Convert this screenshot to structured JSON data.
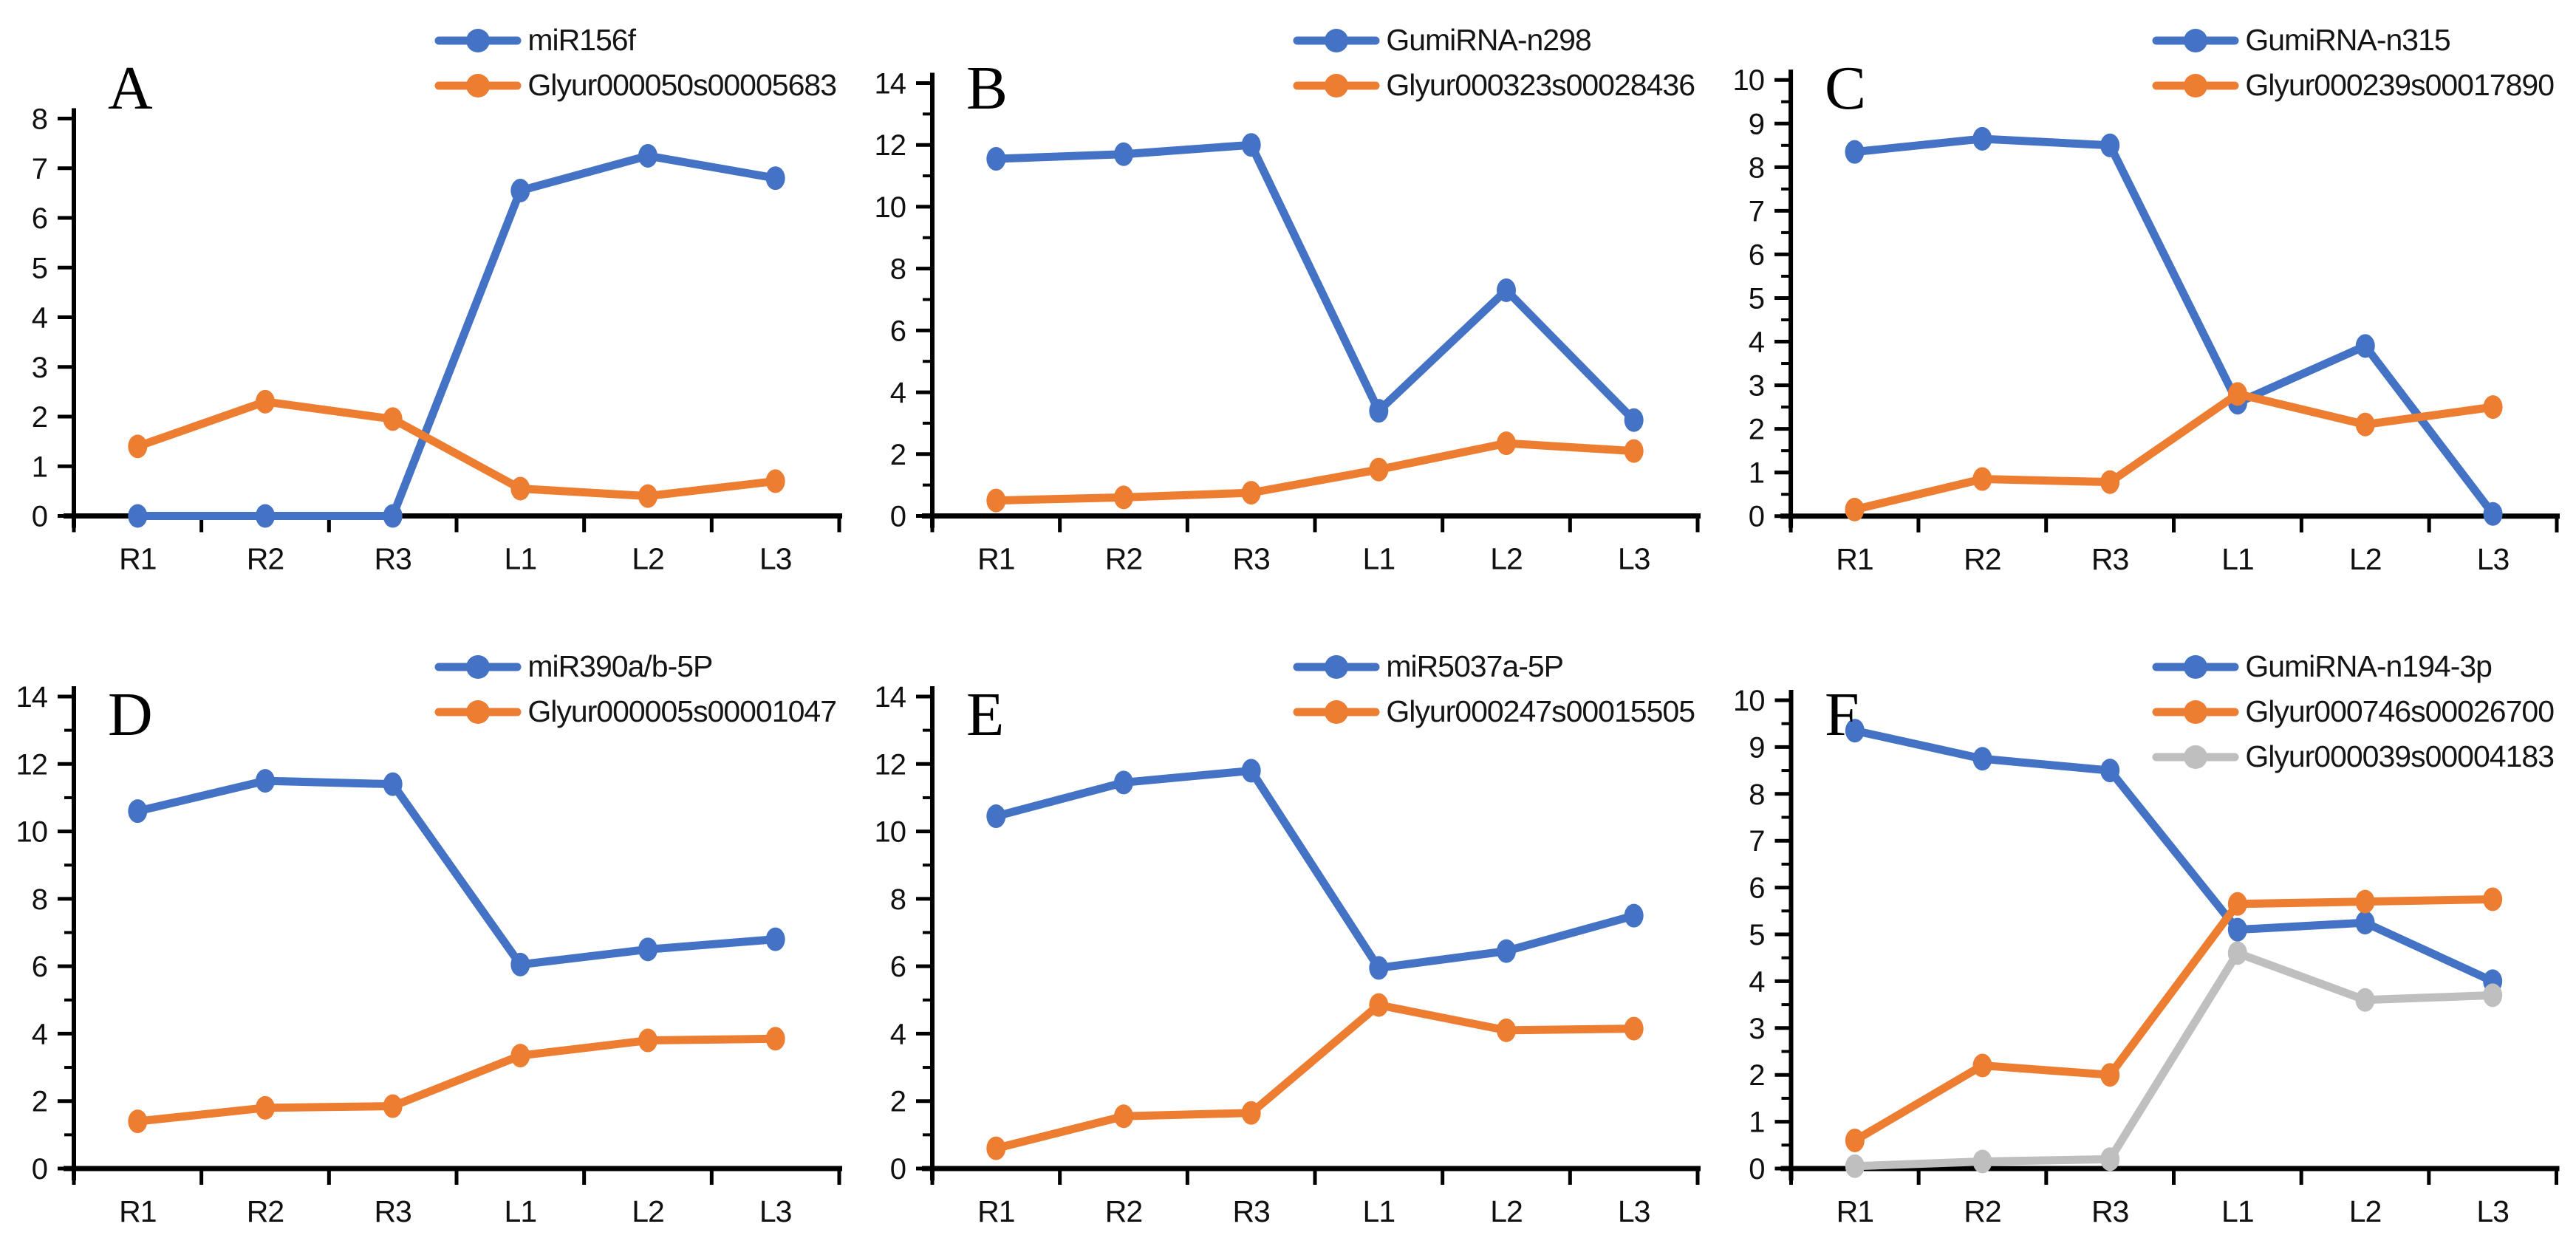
{
  "figure": {
    "background": "#FFFFFF",
    "panel_labels": [
      "A",
      "B",
      "C",
      "D",
      "E",
      "F"
    ]
  },
  "colors": {
    "blue": "#4472C4",
    "orange": "#ED7D31",
    "gray": "#BFBFBF",
    "axis": "#000000",
    "text": "#101010"
  },
  "chart_data": [
    {
      "panel_label": "A",
      "type": "line",
      "categories": [
        "R1",
        "R2",
        "R3",
        "L1",
        "L2",
        "L3"
      ],
      "ylim": [
        0,
        8
      ],
      "yticks": [
        0,
        1,
        2,
        3,
        4,
        5,
        6,
        7,
        8
      ],
      "yminor_step": null,
      "grid": false,
      "legend_position": "top-right",
      "series": [
        {
          "name": "miR156f",
          "color": "blue",
          "values": [
            0,
            0,
            0,
            6.55,
            7.25,
            6.8
          ]
        },
        {
          "name": "Glyur000050s00005683",
          "color": "orange",
          "values": [
            1.4,
            2.3,
            1.95,
            0.55,
            0.4,
            0.7
          ]
        }
      ]
    },
    {
      "panel_label": "B",
      "type": "line",
      "categories": [
        "R1",
        "R2",
        "R3",
        "L1",
        "L2",
        "L3"
      ],
      "ylim": [
        0,
        14
      ],
      "yticks": [
        0,
        2,
        4,
        6,
        8,
        10,
        12,
        14
      ],
      "yminor_step": 1,
      "grid": false,
      "legend_position": "top-right",
      "series": [
        {
          "name": "GumiRNA-n298",
          "color": "blue",
          "values": [
            11.55,
            11.7,
            12.0,
            3.4,
            7.3,
            3.1
          ]
        },
        {
          "name": "Glyur000323s00028436",
          "color": "orange",
          "values": [
            0.5,
            0.6,
            0.75,
            1.5,
            2.35,
            2.1
          ]
        }
      ]
    },
    {
      "panel_label": "C",
      "type": "line",
      "categories": [
        "R1",
        "R2",
        "R3",
        "L1",
        "L2",
        "L3"
      ],
      "ylim": [
        0,
        10
      ],
      "yticks": [
        0,
        1,
        2,
        3,
        4,
        5,
        6,
        7,
        8,
        9,
        10
      ],
      "yminor_step": 0.5,
      "grid": false,
      "legend_position": "top-right",
      "series": [
        {
          "name": "GumiRNA-n315",
          "color": "blue",
          "values": [
            8.35,
            8.65,
            8.5,
            2.6,
            3.9,
            0.05
          ]
        },
        {
          "name": "Glyur000239s00017890",
          "color": "orange",
          "values": [
            0.15,
            0.85,
            0.78,
            2.8,
            2.1,
            2.5
          ]
        }
      ]
    },
    {
      "panel_label": "D",
      "type": "line",
      "categories": [
        "R1",
        "R2",
        "R3",
        "L1",
        "L2",
        "L3"
      ],
      "ylim": [
        0,
        14
      ],
      "yticks": [
        0,
        2,
        4,
        6,
        8,
        10,
        12,
        14
      ],
      "yminor_step": 1,
      "grid": false,
      "legend_position": "top-right",
      "series": [
        {
          "name": "miR390a/b-5P",
          "color": "blue",
          "values": [
            10.6,
            11.5,
            11.4,
            6.05,
            6.5,
            6.8
          ]
        },
        {
          "name": "Glyur000005s00001047",
          "color": "orange",
          "values": [
            1.4,
            1.8,
            1.85,
            3.35,
            3.8,
            3.85
          ]
        }
      ]
    },
    {
      "panel_label": "E",
      "type": "line",
      "categories": [
        "R1",
        "R2",
        "R3",
        "L1",
        "L2",
        "L3"
      ],
      "ylim": [
        0,
        14
      ],
      "yticks": [
        0,
        2,
        4,
        6,
        8,
        10,
        12,
        14
      ],
      "yminor_step": 1,
      "grid": false,
      "legend_position": "top-right",
      "series": [
        {
          "name": "miR5037a-5P",
          "color": "blue",
          "values": [
            10.45,
            11.45,
            11.8,
            5.95,
            6.45,
            7.5
          ]
        },
        {
          "name": "Glyur000247s00015505",
          "color": "orange",
          "values": [
            0.6,
            1.55,
            1.65,
            4.85,
            4.1,
            4.15
          ]
        }
      ]
    },
    {
      "panel_label": "F",
      "type": "line",
      "categories": [
        "R1",
        "R2",
        "R3",
        "L1",
        "L2",
        "L3"
      ],
      "ylim": [
        0,
        10
      ],
      "yticks": [
        0,
        1,
        2,
        3,
        4,
        5,
        6,
        7,
        8,
        9,
        10
      ],
      "yminor_step": 0.5,
      "grid": false,
      "legend_position": "top-right",
      "series": [
        {
          "name": "GumiRNA-n194-3p",
          "color": "blue",
          "values": [
            9.35,
            8.75,
            8.5,
            5.1,
            5.25,
            4.0
          ]
        },
        {
          "name": "Glyur000746s00026700",
          "color": "orange",
          "values": [
            0.6,
            2.2,
            2.0,
            5.65,
            5.7,
            5.75
          ]
        },
        {
          "name": "Glyur000039s00004183",
          "color": "gray",
          "values": [
            0.05,
            0.15,
            0.2,
            4.6,
            3.6,
            3.7
          ]
        }
      ]
    }
  ]
}
